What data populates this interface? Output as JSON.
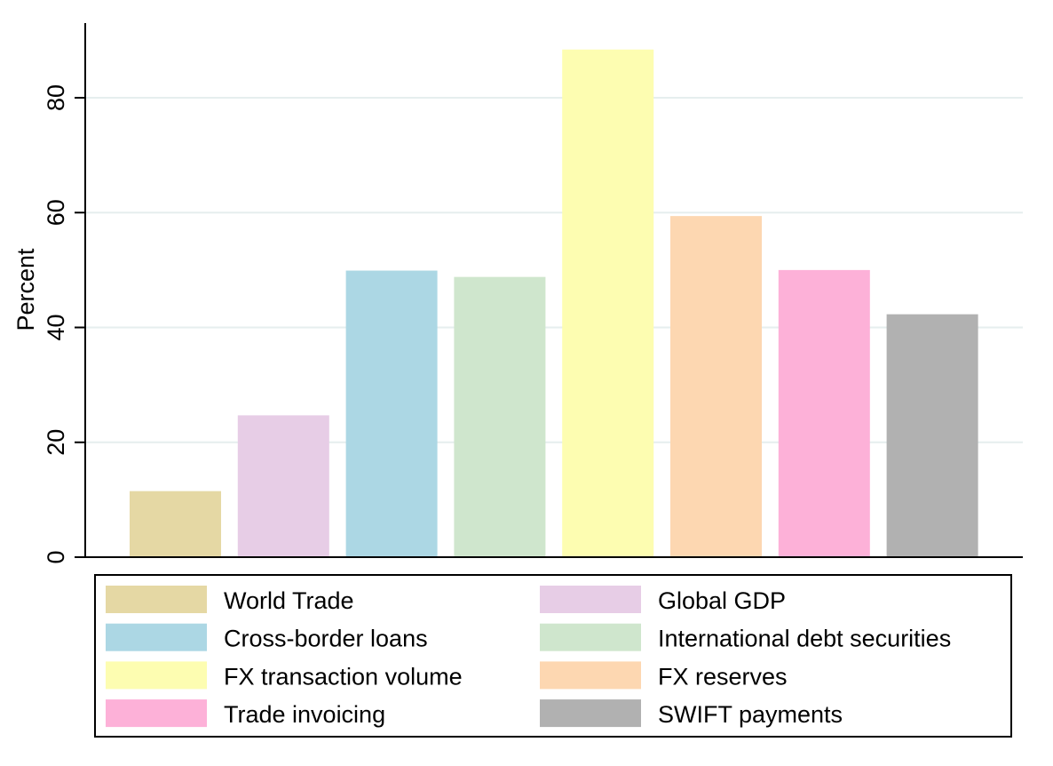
{
  "chart_data": {
    "type": "bar",
    "title": "",
    "xlabel": "",
    "ylabel": "Percent",
    "ylim": [
      0,
      93
    ],
    "yticks": [
      0,
      20,
      40,
      60,
      80
    ],
    "grid": true,
    "legend_position": "bottom",
    "series": [
      {
        "name": "World Trade",
        "value": 11.5,
        "color": "#e5d8a4"
      },
      {
        "name": "Global GDP",
        "value": 24.7,
        "color": "#e7cde6"
      },
      {
        "name": "Cross-border loans",
        "value": 49.9,
        "color": "#acd7e4"
      },
      {
        "name": "International debt securities",
        "value": 48.8,
        "color": "#cfe6cd"
      },
      {
        "name": "FX transaction volume",
        "value": 88.4,
        "color": "#fdfdb1"
      },
      {
        "name": "FX reserves",
        "value": 59.4,
        "color": "#fdd7b1"
      },
      {
        "name": "Trade invoicing",
        "value": 50.0,
        "color": "#fdb1d8"
      },
      {
        "name": "SWIFT payments",
        "value": 42.3,
        "color": "#b1b1b1"
      }
    ]
  }
}
